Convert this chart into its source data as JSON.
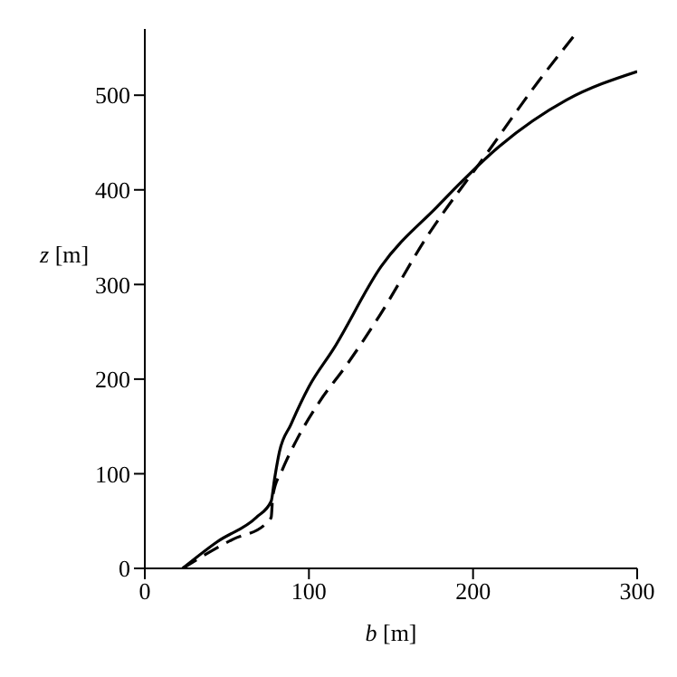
{
  "chart_data": {
    "type": "line",
    "xlabel": "b [m]",
    "ylabel": "z [m]",
    "xlim": [
      0,
      300
    ],
    "ylim": [
      0,
      570
    ],
    "xticks": [
      0,
      100,
      200,
      300
    ],
    "yticks": [
      0,
      100,
      200,
      300,
      400,
      500
    ],
    "marker": "none",
    "series": [
      {
        "color": "#000000",
        "line_style": "solid",
        "x": [
          23,
          44,
          68,
          77,
          79,
          82,
          89,
          100,
          115,
          144,
          178,
          216,
          257,
          300
        ],
        "values": [
          0,
          28,
          54,
          71,
          94,
          123,
          152,
          192,
          232,
          319,
          382,
          446,
          495,
          525
        ]
      },
      {
        "color": "#000000",
        "line_style": "dashed",
        "x": [
          23,
          54,
          73,
          77,
          78,
          84,
          92,
          106,
          123,
          143,
          171,
          209,
          240,
          264
        ],
        "values": [
          0,
          31,
          46,
          54,
          77,
          105,
          134,
          175,
          215,
          267,
          348,
          440,
          515,
          568
        ]
      }
    ]
  }
}
